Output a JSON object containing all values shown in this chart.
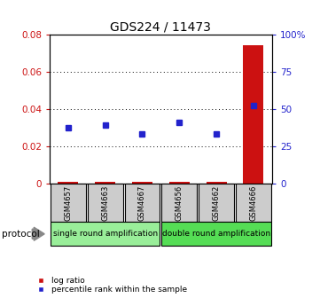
{
  "title": "GDS224 / 11473",
  "samples": [
    "GSM4657",
    "GSM4663",
    "GSM4667",
    "GSM4656",
    "GSM4662",
    "GSM4666"
  ],
  "log_ratio": [
    0.001,
    0.001,
    0.001,
    0.001,
    0.001,
    0.074
  ],
  "percentile_rank": [
    37.0,
    39.0,
    33.0,
    41.0,
    33.0,
    52.0
  ],
  "ylim_left": [
    0,
    0.08
  ],
  "ylim_right": [
    0,
    100
  ],
  "yticks_left": [
    0,
    0.02,
    0.04,
    0.06,
    0.08
  ],
  "yticks_left_labels": [
    "0",
    "0.02",
    "0.04",
    "0.06",
    "0.08"
  ],
  "yticks_right": [
    0,
    25,
    50,
    75,
    100
  ],
  "yticks_right_labels": [
    "0",
    "25",
    "50",
    "75",
    "100%"
  ],
  "bar_color": "#cc1111",
  "square_color": "#2222cc",
  "protocol_groups": [
    {
      "label": "single round amplification",
      "samples": [
        0,
        1,
        2
      ],
      "color": "#99ee99"
    },
    {
      "label": "double round amplification",
      "samples": [
        3,
        4,
        5
      ],
      "color": "#55dd55"
    }
  ],
  "protocol_label": "protocol",
  "legend_items": [
    {
      "label": "log ratio",
      "color": "#cc1111"
    },
    {
      "label": "percentile rank within the sample",
      "color": "#2222cc"
    }
  ],
  "grid_color": "black",
  "sample_box_color": "#cccccc",
  "figure_bg": "#ffffff"
}
